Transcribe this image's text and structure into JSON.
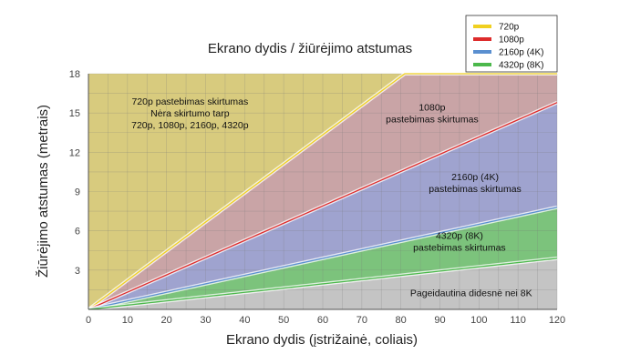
{
  "chart_data": {
    "type": "area",
    "title": "Ekrano dydis / žiūrėjimo atstumas",
    "xlabel": "Ekrano dydis (įstrižainė, coliais)",
    "ylabel": "Žiūrėjimo atstumas (metrais)",
    "xlim": [
      0,
      120
    ],
    "ylim": [
      0,
      18
    ],
    "xticks": [
      "0",
      "10",
      "20",
      "30",
      "40",
      "50",
      "60",
      "70",
      "80",
      "90",
      "100",
      "110",
      "120"
    ],
    "yticks": [
      "3",
      "6",
      "9",
      "12",
      "15",
      "18"
    ],
    "grid": true,
    "legend_position": "top-right",
    "series": [
      {
        "name": "720p",
        "color": "#f0d020",
        "x": [
          0,
          81
        ],
        "y": [
          0,
          18
        ]
      },
      {
        "name": "1080p",
        "color": "#dd2b2b",
        "x": [
          0,
          120
        ],
        "y": [
          0,
          15.8
        ]
      },
      {
        "name": "2160p (4K)",
        "color": "#5a8fd0",
        "x": [
          0,
          120
        ],
        "y": [
          0,
          7.8
        ]
      },
      {
        "name": "4320p (8K)",
        "color": "#4cb84c",
        "x": [
          0,
          120
        ],
        "y": [
          0,
          3.9
        ]
      }
    ],
    "region_labels": [
      {
        "lines": [
          "720p pastebimas skirtumas",
          "Nėra skirtumo tarp",
          "720p, 1080p, 2160p, 4320p"
        ],
        "x": 26,
        "y": 15
      },
      {
        "lines": [
          "1080p",
          "pastebimas skirtumas"
        ],
        "x": 88,
        "y": 15
      },
      {
        "lines": [
          "2160p (4K)",
          "pastebimas skirtumas"
        ],
        "x": 99,
        "y": 9.7
      },
      {
        "lines": [
          "4320p (8K)",
          "pastebimas skirtumas"
        ],
        "x": 95,
        "y": 5.2
      },
      {
        "lines": [
          "Pageidautina didesnė nei 8K"
        ],
        "x": 98,
        "y": 1.3
      }
    ],
    "region_colors": {
      "region_720": "#d8cb7e",
      "region_1080": "#c9a4a6",
      "region_4k": "#9fa3cf",
      "region_8k": "#7cc37c",
      "region_beyond": "#c4c4c4"
    }
  }
}
